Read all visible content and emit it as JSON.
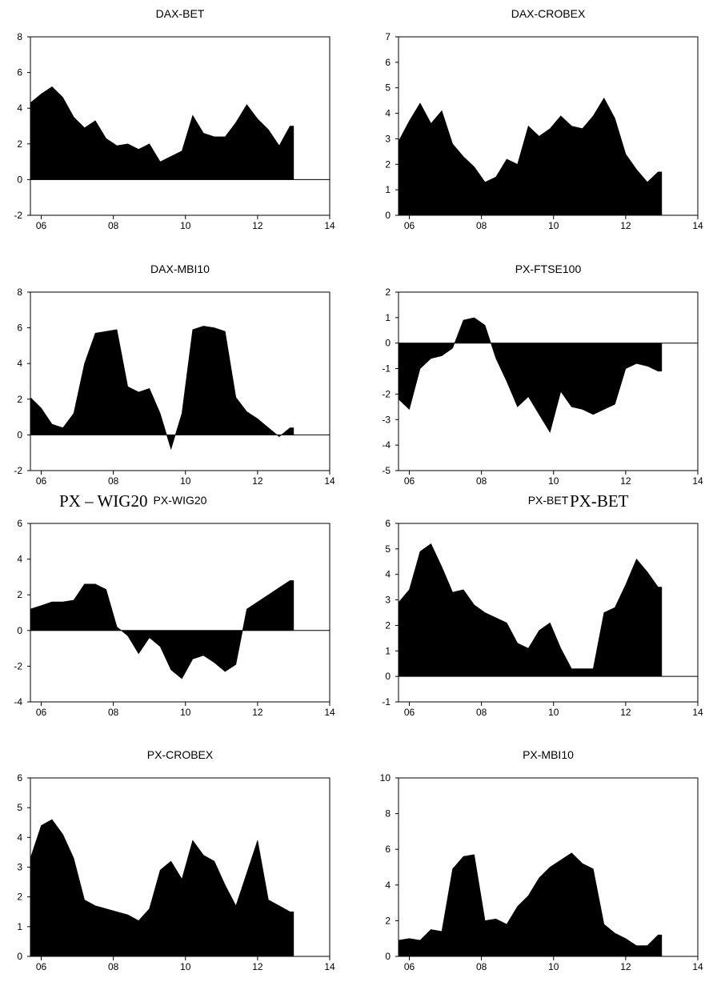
{
  "chart_data": [
    {
      "type": "area",
      "title": "DAX-BET",
      "ylim": [
        -2,
        8
      ],
      "yticks": [
        -2,
        0,
        2,
        4,
        6,
        8
      ],
      "xlim": [
        2006,
        2014
      ],
      "xtick_labels": [
        "06",
        "08",
        "10",
        "12",
        "14"
      ],
      "x_end": 2013.0,
      "x": [
        2005.7,
        2006.0,
        2006.3,
        2006.6,
        2006.9,
        2007.2,
        2007.5,
        2007.8,
        2008.1,
        2008.4,
        2008.7,
        2009.0,
        2009.3,
        2009.6,
        2009.9,
        2010.2,
        2010.5,
        2010.8,
        2011.1,
        2011.4,
        2011.7,
        2012.0,
        2012.3,
        2012.6,
        2012.9
      ],
      "values": [
        4.3,
        4.8,
        5.2,
        4.6,
        3.5,
        2.9,
        3.3,
        2.3,
        1.9,
        2.0,
        1.7,
        2.0,
        1.0,
        1.3,
        1.6,
        3.6,
        2.6,
        2.4,
        2.4,
        3.2,
        4.2,
        3.4,
        2.8,
        1.9,
        3.0
      ],
      "fill": "#000000"
    },
    {
      "type": "area",
      "title": "DAX-CROBEX",
      "ylim": [
        0,
        7
      ],
      "yticks": [
        0,
        1,
        2,
        3,
        4,
        5,
        6,
        7
      ],
      "xlim": [
        2006,
        2014
      ],
      "xtick_labels": [
        "06",
        "08",
        "10",
        "12",
        "14"
      ],
      "x_end": 2013.0,
      "x": [
        2005.7,
        2006.0,
        2006.3,
        2006.6,
        2006.9,
        2007.2,
        2007.5,
        2007.8,
        2008.1,
        2008.4,
        2008.7,
        2009.0,
        2009.3,
        2009.6,
        2009.9,
        2010.2,
        2010.5,
        2010.8,
        2011.1,
        2011.4,
        2011.7,
        2012.0,
        2012.3,
        2012.6,
        2012.9
      ],
      "values": [
        2.9,
        3.7,
        4.4,
        3.6,
        4.1,
        2.8,
        2.3,
        1.9,
        1.3,
        1.5,
        2.2,
        2.0,
        3.5,
        3.1,
        3.4,
        3.9,
        3.5,
        3.4,
        3.9,
        4.6,
        3.8,
        2.4,
        1.8,
        1.3,
        1.7
      ],
      "fill": "#000000"
    },
    {
      "type": "area",
      "title": "DAX-MBI10",
      "ylim": [
        -2,
        8
      ],
      "yticks": [
        -2,
        0,
        2,
        4,
        6,
        8
      ],
      "xlim": [
        2006,
        2014
      ],
      "xtick_labels": [
        "06",
        "08",
        "10",
        "12",
        "14"
      ],
      "x_end": 2013.0,
      "x": [
        2005.7,
        2006.0,
        2006.3,
        2006.6,
        2006.9,
        2007.2,
        2007.5,
        2007.8,
        2008.1,
        2008.4,
        2008.7,
        2009.0,
        2009.3,
        2009.6,
        2009.9,
        2010.2,
        2010.5,
        2010.8,
        2011.1,
        2011.4,
        2011.7,
        2012.0,
        2012.3,
        2012.6,
        2012.9
      ],
      "values": [
        2.1,
        1.5,
        0.6,
        0.4,
        1.2,
        4.0,
        5.7,
        5.8,
        5.9,
        2.7,
        2.4,
        2.6,
        1.2,
        -0.8,
        1.2,
        5.9,
        6.1,
        6.0,
        5.8,
        2.1,
        1.3,
        0.9,
        0.4,
        -0.1,
        0.4
      ],
      "fill": "#000000"
    },
    {
      "type": "area",
      "title": "PX-FTSE100",
      "ylim": [
        -5,
        2
      ],
      "yticks": [
        -5,
        -4,
        -3,
        -2,
        -1,
        0,
        1,
        2
      ],
      "xlim": [
        2006,
        2014
      ],
      "xtick_labels": [
        "06",
        "08",
        "10",
        "12",
        "14"
      ],
      "x_end": 2013.0,
      "x": [
        2005.7,
        2006.0,
        2006.3,
        2006.6,
        2006.9,
        2007.2,
        2007.5,
        2007.8,
        2008.1,
        2008.4,
        2008.7,
        2009.0,
        2009.3,
        2009.6,
        2009.9,
        2010.2,
        2010.5,
        2010.8,
        2011.1,
        2011.4,
        2011.7,
        2012.0,
        2012.3,
        2012.6,
        2012.9
      ],
      "values": [
        -2.2,
        -2.6,
        -1.0,
        -0.6,
        -0.5,
        -0.2,
        0.9,
        1.0,
        0.7,
        -0.6,
        -1.5,
        -2.5,
        -2.1,
        -2.8,
        -3.5,
        -1.9,
        -2.5,
        -2.6,
        -2.8,
        -2.6,
        -2.4,
        -1.0,
        -0.8,
        -0.9,
        -1.1
      ],
      "fill": "#000000"
    },
    {
      "type": "area",
      "title": "PX-WIG20",
      "ylim": [
        -4,
        6
      ],
      "yticks": [
        -4,
        -2,
        0,
        2,
        4,
        6
      ],
      "xlim": [
        2006,
        2014
      ],
      "xtick_labels": [
        "06",
        "08",
        "10",
        "12",
        "14"
      ],
      "x_end": 2013.0,
      "x": [
        2005.7,
        2006.0,
        2006.3,
        2006.6,
        2006.9,
        2007.2,
        2007.5,
        2007.8,
        2008.1,
        2008.4,
        2008.7,
        2009.0,
        2009.3,
        2009.6,
        2009.9,
        2010.2,
        2010.5,
        2010.8,
        2011.1,
        2011.4,
        2011.7,
        2012.0,
        2012.3,
        2012.6,
        2012.9
      ],
      "values": [
        1.2,
        1.4,
        1.6,
        1.6,
        1.7,
        2.6,
        2.6,
        2.3,
        0.2,
        -0.3,
        -1.3,
        -0.4,
        -0.9,
        -2.2,
        -2.7,
        -1.6,
        -1.4,
        -1.8,
        -2.3,
        -1.9,
        1.2,
        1.6,
        2.0,
        2.4,
        2.8
      ],
      "fill": "#000000"
    },
    {
      "type": "area",
      "title": "PX-BET",
      "ylim": [
        -1,
        6
      ],
      "yticks": [
        -1,
        0,
        1,
        2,
        3,
        4,
        5,
        6
      ],
      "xlim": [
        2006,
        2014
      ],
      "xtick_labels": [
        "06",
        "08",
        "10",
        "12",
        "14"
      ],
      "x_end": 2013.0,
      "x": [
        2005.7,
        2006.0,
        2006.3,
        2006.6,
        2006.9,
        2007.2,
        2007.5,
        2007.8,
        2008.1,
        2008.4,
        2008.7,
        2009.0,
        2009.3,
        2009.6,
        2009.9,
        2010.2,
        2010.5,
        2010.8,
        2011.1,
        2011.4,
        2011.7,
        2012.0,
        2012.3,
        2012.6,
        2012.9
      ],
      "values": [
        2.9,
        3.4,
        4.9,
        5.2,
        4.3,
        3.3,
        3.4,
        2.8,
        2.5,
        2.3,
        2.1,
        1.3,
        1.1,
        1.8,
        2.1,
        1.1,
        0.3,
        0.3,
        0.3,
        2.5,
        2.7,
        3.6,
        4.6,
        4.1,
        3.5
      ],
      "fill": "#000000"
    },
    {
      "type": "area",
      "title": "PX-CROBEX",
      "ylim": [
        0,
        6
      ],
      "yticks": [
        0,
        1,
        2,
        3,
        4,
        5,
        6
      ],
      "xlim": [
        2006,
        2014
      ],
      "xtick_labels": [
        "06",
        "08",
        "10",
        "12",
        "14"
      ],
      "x_end": 2013.0,
      "x": [
        2005.7,
        2006.0,
        2006.3,
        2006.6,
        2006.9,
        2007.2,
        2007.5,
        2007.8,
        2008.1,
        2008.4,
        2008.7,
        2009.0,
        2009.3,
        2009.6,
        2009.9,
        2010.2,
        2010.5,
        2010.8,
        2011.1,
        2011.4,
        2011.7,
        2012.0,
        2012.3,
        2012.6,
        2012.9
      ],
      "values": [
        3.3,
        4.4,
        4.6,
        4.1,
        3.3,
        1.9,
        1.7,
        1.6,
        1.5,
        1.4,
        1.2,
        1.6,
        2.9,
        3.2,
        2.6,
        3.9,
        3.4,
        3.2,
        2.4,
        1.7,
        2.8,
        3.9,
        1.9,
        1.7,
        1.5
      ],
      "fill": "#000000"
    },
    {
      "type": "area",
      "title": "PX-MBI10",
      "ylim": [
        0,
        10
      ],
      "yticks": [
        0,
        2,
        4,
        6,
        8,
        10
      ],
      "xlim": [
        2006,
        2014
      ],
      "xtick_labels": [
        "06",
        "08",
        "10",
        "12",
        "14"
      ],
      "x_end": 2013.0,
      "x": [
        2005.7,
        2006.0,
        2006.3,
        2006.6,
        2006.9,
        2007.2,
        2007.5,
        2007.8,
        2008.1,
        2008.4,
        2008.7,
        2009.0,
        2009.3,
        2009.6,
        2009.9,
        2010.2,
        2010.5,
        2010.8,
        2011.1,
        2011.4,
        2011.7,
        2012.0,
        2012.3,
        2012.6,
        2012.9
      ],
      "values": [
        0.9,
        1.0,
        0.9,
        1.5,
        1.4,
        4.9,
        5.6,
        5.7,
        2.0,
        2.1,
        1.8,
        2.8,
        3.4,
        4.4,
        5.0,
        5.4,
        5.8,
        5.2,
        4.9,
        1.8,
        1.3,
        1.0,
        0.6,
        0.6,
        1.2
      ],
      "fill": "#000000"
    }
  ],
  "overlay_labels": {
    "px_wig20": "PX – WIG20",
    "px_bet": "PX-BET"
  }
}
